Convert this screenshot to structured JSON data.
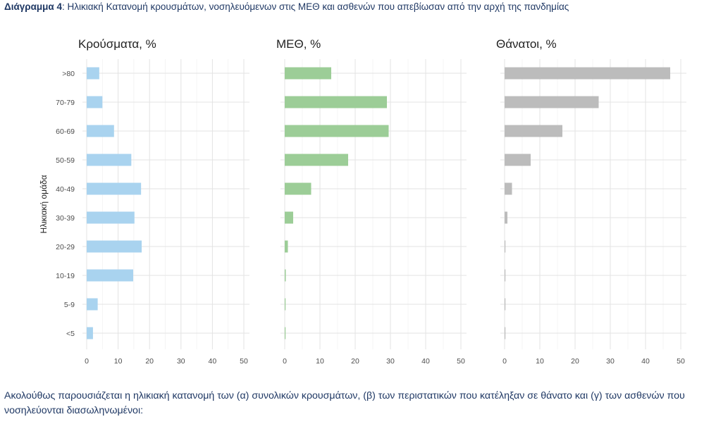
{
  "caption": {
    "label": "Διάγραμμα 4",
    "text": ": Ηλικιακή Κατανομή κρουσμάτων, νοσηλευόμενων στις ΜΕΘ και ασθενών που απεβίωσαν από την αρχή της πανδημίας"
  },
  "chart_data": {
    "type": "bar",
    "orientation": "horizontal",
    "ylabel": "Ηλικιακή ομάδα",
    "categories": [
      ">80",
      "70-79",
      "60-69",
      "50-59",
      "40-49",
      "30-39",
      "20-29",
      "10-19",
      "5-9",
      "<5"
    ],
    "xlim": [
      0,
      50
    ],
    "xticks": [
      0,
      10,
      20,
      30,
      40,
      50
    ],
    "grid": true,
    "panels": [
      {
        "title": "Κρούσματα, %",
        "color": "#a9d3ef",
        "values": [
          4.0,
          5.0,
          8.7,
          14.2,
          17.3,
          15.2,
          17.5,
          14.8,
          3.5,
          2.0
        ]
      },
      {
        "title": "ΜΕΘ, %",
        "color": "#9ccd97",
        "values": [
          13.2,
          29.0,
          29.5,
          18.0,
          7.5,
          2.4,
          0.9,
          0.3,
          0.2,
          0.2
        ]
      },
      {
        "title": "Θάνατοι, %",
        "color": "#bcbcbc",
        "values": [
          47.0,
          26.7,
          16.4,
          7.4,
          2.1,
          0.8,
          0.2,
          0.1,
          0.05,
          0.05
        ]
      }
    ]
  },
  "paragraph": "Ακολούθως παρουσιάζεται η ηλικιακή κατανομή των (α) συνολικών κρουσμάτων, (β) των περιστατικών που κατέληξαν σε θάνατο και (γ) των ασθενών που νοσηλεύονται διασωληνωμένοι:"
}
